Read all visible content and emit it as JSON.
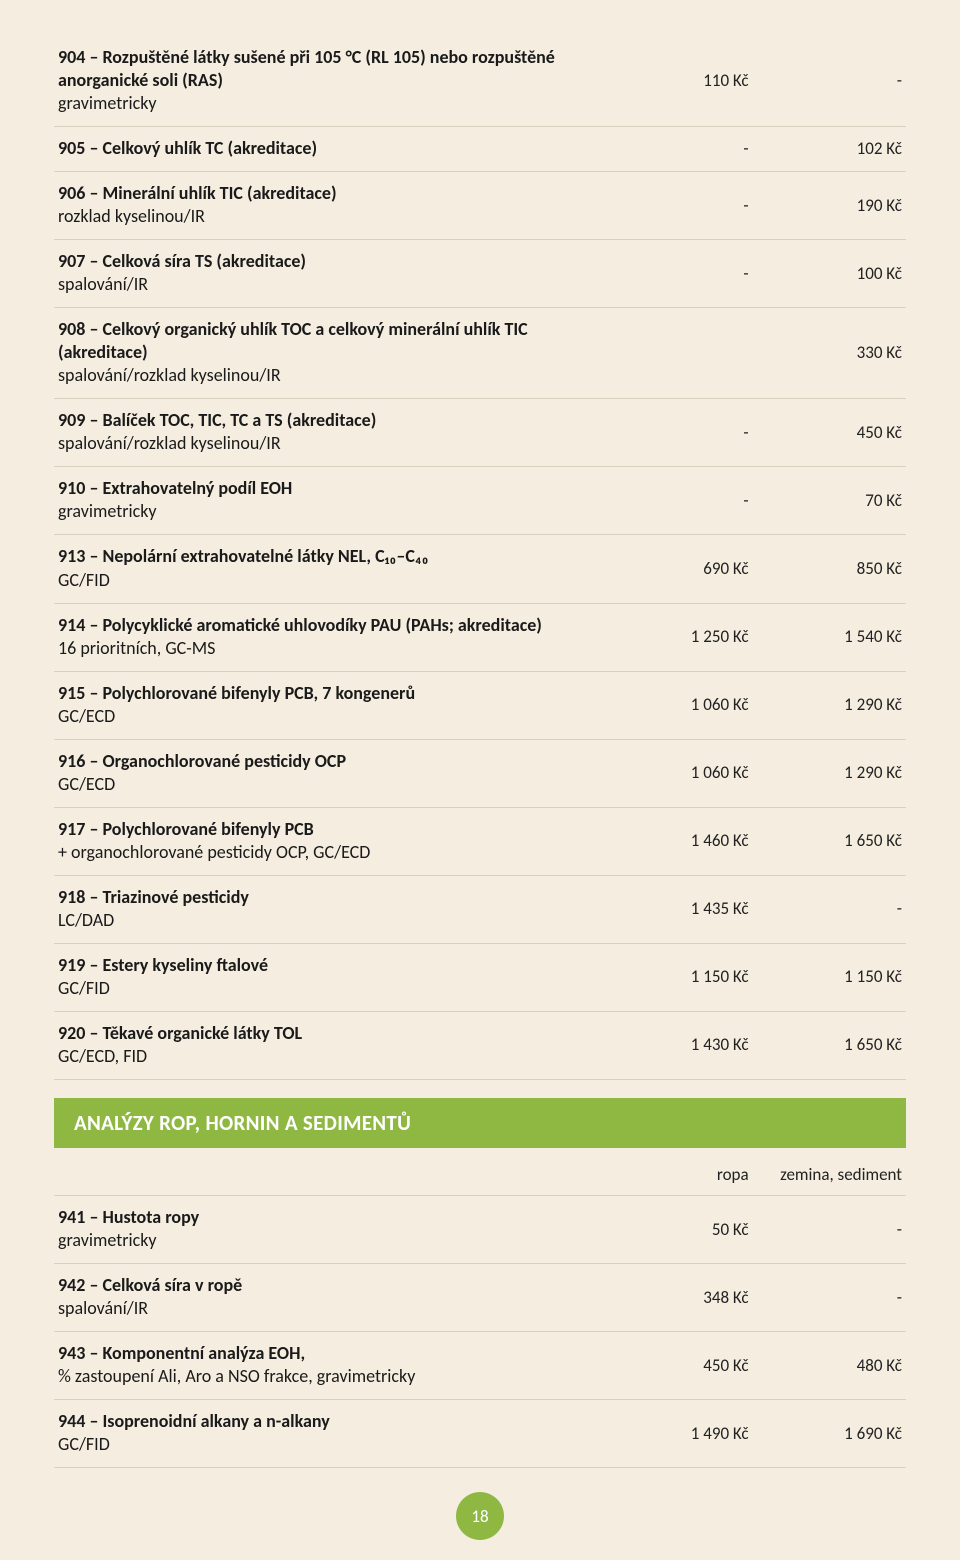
{
  "colors": {
    "page_bg": "#f4ede0",
    "row_border": "#d9d0bd",
    "section_bar_bg": "#8fb843",
    "section_bar_text": "#ffffff",
    "text": "#1a1a1a"
  },
  "typography": {
    "family": "Segoe UI / Myriad Pro",
    "title_weight": 700,
    "body_weight": 400,
    "title_size_pt": 13,
    "body_size_pt": 13,
    "section_size_pt": 16
  },
  "table1": {
    "col_widths_pct": [
      64,
      18,
      18
    ],
    "rows": [
      {
        "title": "904 – Rozpuštěné látky sušené při 105 °C (RL 105) nebo rozpuštěné anorganické soli (RAS)",
        "sub": "gravimetricky",
        "c1": "110 Kč",
        "c2": "-"
      },
      {
        "title": "905 – Celkový uhlík TC (akreditace)",
        "sub": "",
        "c1": "-",
        "c2": "102 Kč"
      },
      {
        "title": "906 – Minerální uhlík TIC (akreditace)",
        "sub": "rozklad kyselinou/IR",
        "c1": "-",
        "c2": "190 Kč"
      },
      {
        "title": "907 – Celková síra TS (akreditace)",
        "sub": "spalování/IR",
        "c1": "-",
        "c2": "100 Kč"
      },
      {
        "title": "908 – Celkový organický uhlík TOC a celkový minerální uhlík TIC (akreditace)",
        "sub": "spalování/rozklad kyselinou/IR",
        "c1": "",
        "c2": "330 Kč"
      },
      {
        "title": "909 – Balíček TOC, TIC, TC a TS (akreditace)",
        "sub": "spalování/rozklad kyselinou/IR",
        "c1": "-",
        "c2": "450 Kč"
      },
      {
        "title": "910 – Extrahovatelný podíl EOH",
        "sub": "gravimetricky",
        "c1": "-",
        "c2": "70 Kč"
      },
      {
        "title": "913 – Nepolární extrahovatelné látky NEL, C₁₀–C₄₀",
        "sub": "GC/FID",
        "c1": "690 Kč",
        "c2": "850 Kč"
      },
      {
        "title": "914 – Polycyklické aromatické uhlovodíky PAU (PAHs; akreditace)",
        "sub": "16 prioritních, GC-MS",
        "c1": "1 250 Kč",
        "c2": "1 540 Kč"
      },
      {
        "title": "915 – Polychlorované bifenyly PCB, 7 kongenerů",
        "sub": "GC/ECD",
        "c1": "1 060 Kč",
        "c2": "1 290 Kč"
      },
      {
        "title": "916 – Organochlorované pesticidy OCP",
        "sub": "GC/ECD",
        "c1": "1 060 Kč",
        "c2": "1 290 Kč"
      },
      {
        "title": "917 – Polychlorované bifenyly PCB",
        "sub": "+ organochlorované pesticidy OCP, GC/ECD",
        "c1": "1 460 Kč",
        "c2": "1 650 Kč"
      },
      {
        "title": "918 – Triazinové pesticidy",
        "sub": "LC/DAD",
        "c1": "1 435 Kč",
        "c2": "-"
      },
      {
        "title": "919 – Estery kyseliny ftalové",
        "sub": "GC/FID",
        "c1": "1 150 Kč",
        "c2": "1 150 Kč"
      },
      {
        "title": "920 – Těkavé organické látky TOL",
        "sub": "GC/ECD, FID",
        "c1": "1 430 Kč",
        "c2": "1 650 Kč"
      }
    ]
  },
  "section_heading": "ANALÝZY ROP, HORNIN A SEDIMENTŮ",
  "table2": {
    "header": {
      "c1": "ropa",
      "c2": "zemina, sediment"
    },
    "col_widths_pct": [
      64,
      18,
      18
    ],
    "rows": [
      {
        "title": "941 – Hustota ropy",
        "sub": "gravimetricky",
        "c1": "50 Kč",
        "c2": "-"
      },
      {
        "title": "942 – Celková síra v ropě",
        "sub": "spalování/IR",
        "c1": "348 Kč",
        "c2": "-"
      },
      {
        "title": "943 – Komponentní analýza EOH,",
        "sub": "% zastoupení Ali, Aro a NSO frakce, gravimetricky",
        "c1": "450 Kč",
        "c2": "480 Kč"
      },
      {
        "title": "944 – Isoprenoidní alkany a n-alkany",
        "sub": "GC/FID",
        "c1": "1 490 Kč",
        "c2": "1 690 Kč"
      }
    ]
  },
  "page_number": "18"
}
